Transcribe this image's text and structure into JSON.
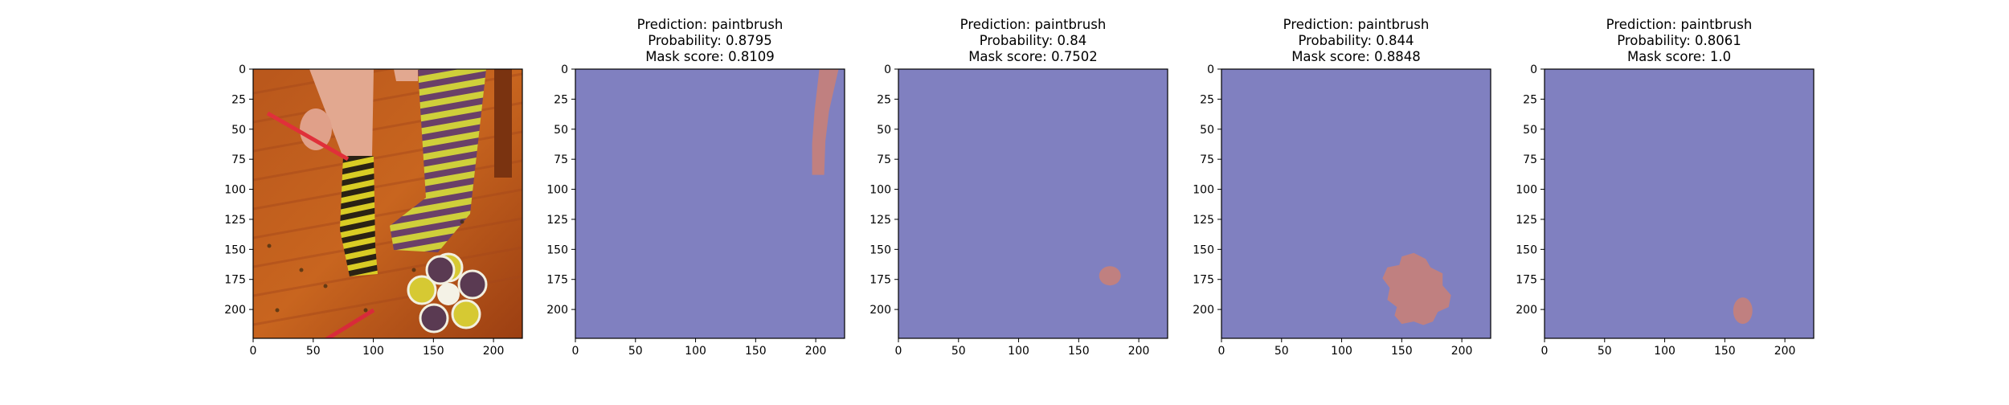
{
  "figure": {
    "background": "#ffffff",
    "axis_color": "#000000",
    "mask_background_color": "#8080c0",
    "mask_foreground_color": "#c08080"
  },
  "chart_data": [
    {
      "type": "image",
      "content": "photo",
      "title_lines": [],
      "xlim": [
        0,
        224
      ],
      "ylim": [
        224,
        0
      ],
      "xticks": [
        0,
        50,
        100,
        150,
        200
      ],
      "yticks": [
        0,
        25,
        50,
        75,
        100,
        125,
        150,
        175,
        200
      ]
    },
    {
      "type": "image",
      "content": "mask",
      "title_lines": [
        "Prediction: paintbrush",
        "Probability: 0.8795",
        "Mask score: 0.8109"
      ],
      "xlim": [
        0,
        224
      ],
      "ylim": [
        224,
        0
      ],
      "xticks": [
        0,
        50,
        100,
        150,
        200
      ],
      "yticks": [
        0,
        25,
        50,
        75,
        100,
        125,
        150,
        175,
        200
      ],
      "mask_region": {
        "shape": "polygon",
        "points": [
          [
            203,
            0
          ],
          [
            219,
            0
          ],
          [
            211,
            35
          ],
          [
            208,
            60
          ],
          [
            207,
            88
          ],
          [
            197,
            88
          ],
          [
            197,
            62
          ],
          [
            199,
            35
          ]
        ]
      }
    },
    {
      "type": "image",
      "content": "mask",
      "title_lines": [
        "Prediction: paintbrush",
        "Probability: 0.84",
        "Mask score: 0.7502"
      ],
      "xlim": [
        0,
        224
      ],
      "ylim": [
        224,
        0
      ],
      "xticks": [
        0,
        50,
        100,
        150,
        200
      ],
      "yticks": [
        0,
        25,
        50,
        75,
        100,
        125,
        150,
        175,
        200
      ],
      "mask_region": {
        "shape": "ellipse",
        "cx": 176,
        "cy": 172,
        "rx": 9,
        "ry": 8
      }
    },
    {
      "type": "image",
      "content": "mask",
      "title_lines": [
        "Prediction: paintbrush",
        "Probability: 0.844",
        "Mask score: 0.8848"
      ],
      "xlim": [
        0,
        224
      ],
      "ylim": [
        224,
        0
      ],
      "xticks": [
        0,
        50,
        100,
        150,
        200
      ],
      "yticks": [
        0,
        25,
        50,
        75,
        100,
        125,
        150,
        175,
        200
      ],
      "mask_region": {
        "shape": "polygon",
        "points": [
          [
            150,
            156
          ],
          [
            160,
            153
          ],
          [
            170,
            158
          ],
          [
            174,
            165
          ],
          [
            184,
            170
          ],
          [
            184,
            180
          ],
          [
            191,
            188
          ],
          [
            189,
            198
          ],
          [
            180,
            202
          ],
          [
            176,
            210
          ],
          [
            168,
            213
          ],
          [
            160,
            210
          ],
          [
            150,
            212
          ],
          [
            144,
            205
          ],
          [
            146,
            198
          ],
          [
            138,
            192
          ],
          [
            140,
            182
          ],
          [
            134,
            174
          ],
          [
            138,
            165
          ],
          [
            148,
            163
          ]
        ]
      }
    },
    {
      "type": "image",
      "content": "mask",
      "title_lines": [
        "Prediction: paintbrush",
        "Probability: 0.8061",
        "Mask score: 1.0"
      ],
      "xlim": [
        0,
        224
      ],
      "ylim": [
        224,
        0
      ],
      "xticks": [
        0,
        50,
        100,
        150,
        200
      ],
      "yticks": [
        0,
        25,
        50,
        75,
        100,
        125,
        150,
        175,
        200
      ],
      "mask_region": {
        "shape": "ellipse",
        "cx": 165,
        "cy": 201,
        "rx": 8,
        "ry": 11
      }
    }
  ]
}
